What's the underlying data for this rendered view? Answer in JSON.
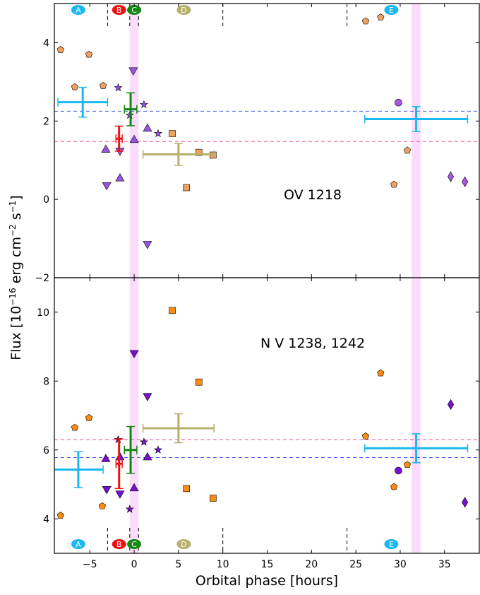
{
  "chart_data": {
    "type": "scatter",
    "xlabel": "Orbital phase [hours]",
    "ylabel_main": "Flux [10",
    "ylabel_exp": "−16",
    "ylabel_rest": " erg cm",
    "ylabel_exp2": "−2",
    "ylabel_tail": " s",
    "ylabel_exp3": "−1",
    "ylabel_close": "]",
    "xlim": [
      -9,
      39
    ],
    "xticks": [
      -5,
      0,
      5,
      10,
      15,
      20,
      25,
      30,
      35
    ],
    "xtick_labels": [
      "−5",
      "0",
      "5",
      "10",
      "15",
      "20",
      "25",
      "30",
      "35"
    ],
    "shaded_bands": [
      [
        -0.5,
        0.5
      ],
      [
        31.3,
        32.3
      ]
    ],
    "epoch_markers": [
      {
        "label": "A",
        "x": -6.3,
        "color": "#1ab8f0"
      },
      {
        "label": "B",
        "x": -1.7,
        "color": "#ee1111"
      },
      {
        "label": "C",
        "x": 0.0,
        "color": "#118811"
      },
      {
        "label": "D",
        "x": 5.6,
        "color": "#b5b06a"
      },
      {
        "label": "E",
        "x": 29.0,
        "color": "#1ab8f0"
      }
    ],
    "separator_lines_x": [
      -3.0,
      -0.5,
      0.5,
      10.0,
      24.0
    ],
    "panels": [
      {
        "name": "OV 1218",
        "ylim": [
          -2,
          5
        ],
        "yticks": [
          -2,
          0,
          2,
          4
        ],
        "ytick_labels": [
          "−2",
          "0",
          "2",
          "4"
        ],
        "hlines": [
          {
            "y": 2.25,
            "color": "#4455ee"
          },
          {
            "y": 1.48,
            "color": "#ee4499"
          }
        ],
        "errorbars": [
          {
            "x": -5.8,
            "y": 2.48,
            "xerr": 2.8,
            "yerr": 0.38,
            "color": "#1ab8f0"
          },
          {
            "x": -1.7,
            "y": 1.55,
            "xerr": 0.35,
            "yerr": 0.32,
            "color": "#ee1111"
          },
          {
            "x": -0.4,
            "y": 2.3,
            "xerr": 0.7,
            "yerr": 0.42,
            "color": "#118811"
          },
          {
            "x": 5.0,
            "y": 1.15,
            "xerr": 4.0,
            "yerr": 0.28,
            "color": "#b5b06a"
          },
          {
            "x": 31.8,
            "y": 2.05,
            "xerr": 5.8,
            "yerr": 0.32,
            "color": "#1ab8f0"
          }
        ],
        "points": [
          {
            "x": -8.3,
            "y": 3.82,
            "m": "pentagon",
            "c": "#f0a060"
          },
          {
            "x": -5.1,
            "y": 3.7,
            "m": "pentagon",
            "c": "#f0a060"
          },
          {
            "x": -6.7,
            "y": 2.87,
            "m": "pentagon",
            "c": "#f0a060"
          },
          {
            "x": -3.5,
            "y": 2.9,
            "m": "pentagon",
            "c": "#f0a060"
          },
          {
            "x": -1.8,
            "y": 2.85,
            "m": "star",
            "c": "#9955dd"
          },
          {
            "x": -0.5,
            "y": 2.15,
            "m": "star",
            "c": "#9955dd"
          },
          {
            "x": 1.1,
            "y": 2.42,
            "m": "star",
            "c": "#9955dd"
          },
          {
            "x": 2.7,
            "y": 1.68,
            "m": "star",
            "c": "#9955dd"
          },
          {
            "x": -0.1,
            "y": 3.28,
            "m": "triangle-down",
            "c": "#9955dd"
          },
          {
            "x": -3.2,
            "y": 1.28,
            "m": "triangle-up",
            "c": "#9955dd"
          },
          {
            "x": -1.6,
            "y": 1.23,
            "m": "triangle-down",
            "c": "#9955dd"
          },
          {
            "x": -3.1,
            "y": 0.35,
            "m": "triangle-down",
            "c": "#9955dd"
          },
          {
            "x": -1.6,
            "y": 0.55,
            "m": "triangle-up",
            "c": "#9955dd"
          },
          {
            "x": 0.0,
            "y": 1.53,
            "m": "triangle-up",
            "c": "#9955dd"
          },
          {
            "x": 1.5,
            "y": 1.82,
            "m": "triangle-up",
            "c": "#9955dd"
          },
          {
            "x": 1.5,
            "y": -1.15,
            "m": "triangle-down",
            "c": "#9955dd"
          },
          {
            "x": 4.3,
            "y": 1.68,
            "m": "square",
            "c": "#f0a060"
          },
          {
            "x": 7.3,
            "y": 1.2,
            "m": "square",
            "c": "#f0a060"
          },
          {
            "x": 8.9,
            "y": 1.13,
            "m": "square",
            "c": "#f0a060"
          },
          {
            "x": 5.9,
            "y": 0.3,
            "m": "square",
            "c": "#f0a060"
          },
          {
            "x": 26.1,
            "y": 4.55,
            "m": "pentagon",
            "c": "#f0a060"
          },
          {
            "x": 27.8,
            "y": 4.65,
            "m": "pentagon",
            "c": "#f0a060"
          },
          {
            "x": 29.8,
            "y": 2.47,
            "m": "circle",
            "c": "#aa55dd"
          },
          {
            "x": 30.8,
            "y": 1.25,
            "m": "pentagon",
            "c": "#f0a060"
          },
          {
            "x": 29.3,
            "y": 0.38,
            "m": "pentagon",
            "c": "#f0a060"
          },
          {
            "x": 35.7,
            "y": 0.58,
            "m": "diamond",
            "c": "#aa55dd"
          },
          {
            "x": 37.3,
            "y": 0.45,
            "m": "diamond",
            "c": "#aa55dd"
          }
        ]
      },
      {
        "name": "N V 1238, 1242",
        "ylim": [
          3.0,
          11.0
        ],
        "yticks": [
          4,
          6,
          8,
          10
        ],
        "ytick_labels": [
          "4",
          "6",
          "8",
          "10"
        ],
        "hlines": [
          {
            "y": 6.3,
            "color": "#ee4499"
          },
          {
            "y": 5.78,
            "color": "#4455ee"
          }
        ],
        "errorbars": [
          {
            "x": -6.3,
            "y": 5.43,
            "xerr": 2.8,
            "yerr": 0.52,
            "color": "#1ab8f0"
          },
          {
            "x": -1.7,
            "y": 5.6,
            "xerr": 0.35,
            "yerr": 0.72,
            "color": "#ee1111"
          },
          {
            "x": -0.4,
            "y": 6.0,
            "xerr": 0.7,
            "yerr": 0.68,
            "color": "#118811"
          },
          {
            "x": 5.0,
            "y": 6.63,
            "xerr": 4.0,
            "yerr": 0.42,
            "color": "#b5b06a"
          },
          {
            "x": 31.8,
            "y": 6.05,
            "xerr": 5.8,
            "yerr": 0.42,
            "color": "#1ab8f0"
          }
        ],
        "points": [
          {
            "x": -8.3,
            "y": 4.1,
            "m": "pentagon",
            "c": "#ff8c11"
          },
          {
            "x": -3.6,
            "y": 4.37,
            "m": "pentagon",
            "c": "#ff8c11"
          },
          {
            "x": -6.7,
            "y": 6.65,
            "m": "pentagon",
            "c": "#ff8c11"
          },
          {
            "x": -5.1,
            "y": 6.93,
            "m": "pentagon",
            "c": "#ff8c11"
          },
          {
            "x": -3.2,
            "y": 5.75,
            "m": "triangle-up",
            "c": "#7711cc"
          },
          {
            "x": -3.1,
            "y": 4.85,
            "m": "triangle-down",
            "c": "#7711cc"
          },
          {
            "x": -1.6,
            "y": 4.72,
            "m": "triangle-down",
            "c": "#7711cc"
          },
          {
            "x": -1.6,
            "y": 5.8,
            "m": "triangle-up",
            "c": "#7711cc"
          },
          {
            "x": -1.8,
            "y": 6.3,
            "m": "star",
            "c": "#7711cc"
          },
          {
            "x": 1.1,
            "y": 6.23,
            "m": "star",
            "c": "#7711cc"
          },
          {
            "x": 2.7,
            "y": 6.0,
            "m": "star",
            "c": "#7711cc"
          },
          {
            "x": -0.5,
            "y": 4.28,
            "m": "star",
            "c": "#7711cc"
          },
          {
            "x": 0.0,
            "y": 8.8,
            "m": "triangle-down",
            "c": "#7711cc"
          },
          {
            "x": 0.0,
            "y": 4.9,
            "m": "triangle-up",
            "c": "#7711cc"
          },
          {
            "x": 1.5,
            "y": 7.55,
            "m": "triangle-down",
            "c": "#7711cc"
          },
          {
            "x": 1.5,
            "y": 5.8,
            "m": "triangle-up",
            "c": "#7711cc"
          },
          {
            "x": 4.3,
            "y": 10.05,
            "m": "square",
            "c": "#ff8c11"
          },
          {
            "x": 7.3,
            "y": 7.97,
            "m": "square",
            "c": "#ff8c11"
          },
          {
            "x": 5.9,
            "y": 4.88,
            "m": "square",
            "c": "#ff8c11"
          },
          {
            "x": 8.9,
            "y": 4.6,
            "m": "square",
            "c": "#ff8c11"
          },
          {
            "x": 27.8,
            "y": 8.23,
            "m": "pentagon",
            "c": "#ff8c11"
          },
          {
            "x": 26.1,
            "y": 6.4,
            "m": "pentagon",
            "c": "#ff8c11"
          },
          {
            "x": 29.8,
            "y": 5.4,
            "m": "circle",
            "c": "#7711cc"
          },
          {
            "x": 30.8,
            "y": 5.57,
            "m": "pentagon",
            "c": "#ff8c11"
          },
          {
            "x": 29.3,
            "y": 4.93,
            "m": "pentagon",
            "c": "#ff8c11"
          },
          {
            "x": 35.7,
            "y": 7.32,
            "m": "diamond",
            "c": "#7711cc"
          },
          {
            "x": 37.3,
            "y": 4.48,
            "m": "diamond",
            "c": "#7711cc"
          }
        ]
      }
    ]
  }
}
